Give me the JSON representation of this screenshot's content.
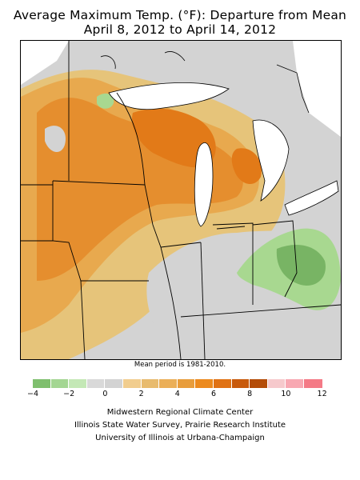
{
  "title": {
    "line1": "Average Maximum Temp. (°F): Departure from Mean",
    "line2": "April 8, 2012 to April 14, 2012"
  },
  "map": {
    "note": "Mean period is 1981-2010.",
    "colors": {
      "background": "#d3d3d3",
      "lake": "#ffffff",
      "neg4": "#78b464",
      "neg2": "#a8d890",
      "zero_to_2": "#e6c47a",
      "two_to_4": "#e8a94e",
      "four_to_6": "#e58e2e",
      "six_to_8": "#e27a18"
    }
  },
  "legend": {
    "swatch_colors": [
      "#7fbf6e",
      "#a3d692",
      "#c4e8b6",
      "#d9d9d9",
      "#d3d3d3",
      "#f1cd8e",
      "#e8bb6e",
      "#ebaf58",
      "#e89d3c",
      "#ec8a1e",
      "#e07214",
      "#c85a0c",
      "#b44c08",
      "#f6c9cc",
      "#f8a8b2",
      "#f47a86"
    ],
    "ticks": [
      "−4",
      "−2",
      "0",
      "2",
      "4",
      "6",
      "8",
      "10",
      "12"
    ]
  },
  "credits": {
    "line1": "Midwestern Regional Climate Center",
    "line2": "Illinois State Water Survey, Prairie Research Institute",
    "line3": "University of Illinois at Urbana-Champaign"
  }
}
